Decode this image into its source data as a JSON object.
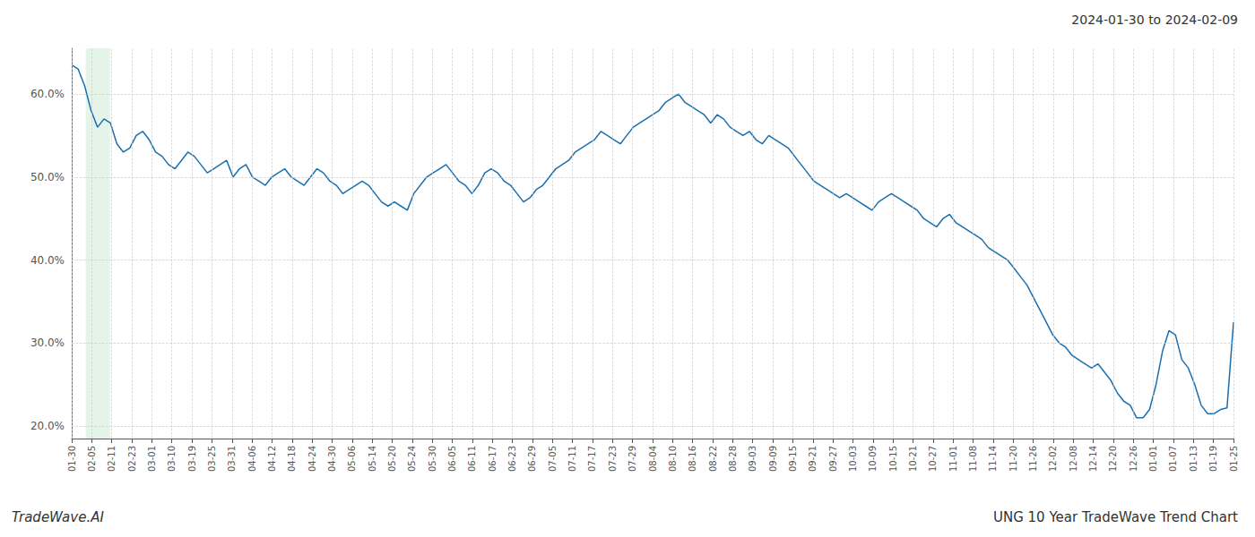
{
  "chart_data": {
    "type": "line",
    "title": "UNG 10 Year TradeWave Trend Chart",
    "subtitle": "2024-01-30 to 2024-02-09",
    "annotations": [
      "TradeWave.AI"
    ],
    "color": "#1a6faf",
    "grid": true,
    "highlight": {
      "x_start": 2.16,
      "x_end": 5.94,
      "color": "#d4edda"
    },
    "xlim": [
      0,
      180
    ],
    "xticks": [
      {
        "value": 0,
        "label": "01-30"
      },
      {
        "value": 3.103448275862,
        "label": "02-05"
      },
      {
        "value": 6.206896551724,
        "label": "02-11"
      },
      {
        "value": 9.310344827586,
        "label": "02-23"
      },
      {
        "value": 12.413793103448,
        "label": "03-01"
      },
      {
        "value": 15.51724137931,
        "label": "03-10"
      },
      {
        "value": 18.620689655172,
        "label": "03-19"
      },
      {
        "value": 21.724137931034,
        "label": "03-25"
      },
      {
        "value": 24.827586206897,
        "label": "03-31"
      },
      {
        "value": 27.931034482759,
        "label": "04-06"
      },
      {
        "value": 31.034482758621,
        "label": "04-12"
      },
      {
        "value": 34.137931034483,
        "label": "04-18"
      },
      {
        "value": 37.241379310345,
        "label": "04-24"
      },
      {
        "value": 40.344827586207,
        "label": "04-30"
      },
      {
        "value": 43.448275862069,
        "label": "05-06"
      },
      {
        "value": 46.551724137931,
        "label": "05-14"
      },
      {
        "value": 49.655172413793,
        "label": "05-20"
      },
      {
        "value": 52.758620689655,
        "label": "05-24"
      },
      {
        "value": 55.862068965517,
        "label": "05-30"
      },
      {
        "value": 58.965517241379,
        "label": "06-05"
      },
      {
        "value": 62.068965517241,
        "label": "06-11"
      },
      {
        "value": 65.172413793103,
        "label": "06-17"
      },
      {
        "value": 68.275862068966,
        "label": "06-23"
      },
      {
        "value": 71.379310344828,
        "label": "06-29"
      },
      {
        "value": 74.48275862069,
        "label": "07-05"
      },
      {
        "value": 77.586206896552,
        "label": "07-11"
      },
      {
        "value": 80.689655172414,
        "label": "07-17"
      },
      {
        "value": 83.793103448276,
        "label": "07-23"
      },
      {
        "value": 86.896551724138,
        "label": "07-29"
      },
      {
        "value": 90,
        "label": "08-04"
      },
      {
        "value": 93.103448275862,
        "label": "08-10"
      },
      {
        "value": 96.206896551724,
        "label": "08-16"
      },
      {
        "value": 99.310344827586,
        "label": "08-22"
      },
      {
        "value": 102.413793103448,
        "label": "08-28"
      },
      {
        "value": 105.51724137931,
        "label": "09-03"
      },
      {
        "value": 108.620689655172,
        "label": "09-09"
      },
      {
        "value": 111.724137931034,
        "label": "09-15"
      },
      {
        "value": 114.827586206897,
        "label": "09-21"
      },
      {
        "value": 117.931034482759,
        "label": "09-27"
      },
      {
        "value": 121.034482758621,
        "label": "10-03"
      },
      {
        "value": 124.137931034483,
        "label": "10-09"
      },
      {
        "value": 127.241379310345,
        "label": "10-15"
      },
      {
        "value": 130.344827586207,
        "label": "10-21"
      },
      {
        "value": 133.448275862069,
        "label": "10-27"
      },
      {
        "value": 136.551724137931,
        "label": "11-01"
      },
      {
        "value": 139.655172413793,
        "label": "11-08"
      },
      {
        "value": 142.758620689655,
        "label": "11-14"
      },
      {
        "value": 145.862068965517,
        "label": "11-20"
      },
      {
        "value": 148.965517241379,
        "label": "11-26"
      },
      {
        "value": 152.068965517241,
        "label": "12-02"
      },
      {
        "value": 155.172413793103,
        "label": "12-08"
      },
      {
        "value": 158.275862068966,
        "label": "12-14"
      },
      {
        "value": 161.379310344828,
        "label": "12-20"
      },
      {
        "value": 164.48275862069,
        "label": "12-26"
      },
      {
        "value": 167.586206896552,
        "label": "01-01"
      },
      {
        "value": 170.689655172414,
        "label": "01-07"
      },
      {
        "value": 173.793103448276,
        "label": "01-13"
      },
      {
        "value": 176.896551724138,
        "label": "01-19"
      },
      {
        "value": 180,
        "label": "01-25"
      }
    ],
    "ylim": [
      0.185,
      0.655
    ],
    "yticks": [
      {
        "value": 0.2,
        "label": "20.0%"
      },
      {
        "value": 0.3,
        "label": "30.0%"
      },
      {
        "value": 0.4,
        "label": "40.0%"
      },
      {
        "value": 0.5,
        "label": "50.0%"
      },
      {
        "value": 0.6,
        "label": "60.0%"
      }
    ],
    "x": [
      0,
      1,
      2,
      3,
      4,
      5,
      6,
      7,
      8,
      9,
      10,
      11,
      12,
      13,
      14,
      15,
      16,
      17,
      18,
      19,
      20,
      21,
      22,
      23,
      24,
      25,
      26,
      27,
      28,
      29,
      30,
      31,
      32,
      33,
      34,
      35,
      36,
      37,
      38,
      39,
      40,
      41,
      42,
      43,
      44,
      45,
      46,
      47,
      48,
      49,
      50,
      51,
      52,
      53,
      54,
      55,
      56,
      57,
      58,
      59,
      60,
      61,
      62,
      63,
      64,
      65,
      66,
      67,
      68,
      69,
      70,
      71,
      72,
      73,
      74,
      75,
      76,
      77,
      78,
      79,
      80,
      81,
      82,
      83,
      84,
      85,
      86,
      87,
      88,
      89,
      90,
      91,
      92,
      93,
      94,
      95,
      96,
      97,
      98,
      99,
      100,
      101,
      102,
      103,
      104,
      105,
      106,
      107,
      108,
      109,
      110,
      111,
      112,
      113,
      114,
      115,
      116,
      117,
      118,
      119,
      120,
      121,
      122,
      123,
      124,
      125,
      126,
      127,
      128,
      129,
      130,
      131,
      132,
      133,
      134,
      135,
      136,
      137,
      138,
      139,
      140,
      141,
      142,
      143,
      144,
      145,
      146,
      147,
      148,
      149,
      150,
      151,
      152,
      153,
      154,
      155,
      156,
      157,
      158,
      159,
      160,
      161,
      162,
      163,
      164,
      165,
      166,
      167,
      168,
      169,
      170,
      171,
      172,
      173,
      174,
      175,
      176,
      177,
      178,
      179,
      180
    ],
    "values": [
      0.635,
      0.63,
      0.61,
      0.58,
      0.56,
      0.57,
      0.565,
      0.54,
      0.53,
      0.535,
      0.55,
      0.555,
      0.545,
      0.53,
      0.525,
      0.515,
      0.51,
      0.52,
      0.53,
      0.525,
      0.515,
      0.505,
      0.51,
      0.515,
      0.52,
      0.5,
      0.51,
      0.515,
      0.5,
      0.495,
      0.49,
      0.5,
      0.505,
      0.51,
      0.5,
      0.495,
      0.49,
      0.5,
      0.51,
      0.505,
      0.495,
      0.49,
      0.48,
      0.485,
      0.49,
      0.495,
      0.49,
      0.48,
      0.47,
      0.465,
      0.47,
      0.465,
      0.46,
      0.48,
      0.49,
      0.5,
      0.505,
      0.51,
      0.515,
      0.505,
      0.495,
      0.49,
      0.48,
      0.49,
      0.505,
      0.51,
      0.505,
      0.495,
      0.49,
      0.48,
      0.47,
      0.475,
      0.485,
      0.49,
      0.5,
      0.51,
      0.515,
      0.52,
      0.53,
      0.535,
      0.54,
      0.545,
      0.555,
      0.55,
      0.545,
      0.54,
      0.55,
      0.56,
      0.565,
      0.57,
      0.575,
      0.58,
      0.59,
      0.595,
      0.6,
      0.59,
      0.585,
      0.58,
      0.575,
      0.565,
      0.575,
      0.57,
      0.56,
      0.555,
      0.55,
      0.555,
      0.545,
      0.54,
      0.55,
      0.545,
      0.54,
      0.535,
      0.525,
      0.515,
      0.505,
      0.495,
      0.49,
      0.485,
      0.48,
      0.475,
      0.48,
      0.475,
      0.47,
      0.465,
      0.46,
      0.47,
      0.475,
      0.48,
      0.475,
      0.47,
      0.465,
      0.46,
      0.45,
      0.445,
      0.44,
      0.45,
      0.455,
      0.445,
      0.44,
      0.435,
      0.43,
      0.425,
      0.415,
      0.41,
      0.405,
      0.4,
      0.39,
      0.38,
      0.37,
      0.355,
      0.34,
      0.325,
      0.31,
      0.3,
      0.295,
      0.285,
      0.28,
      0.275,
      0.27,
      0.275,
      0.265,
      0.255,
      0.24,
      0.23,
      0.225,
      0.21,
      0.21,
      0.22,
      0.25,
      0.29,
      0.315,
      0.31,
      0.28,
      0.27,
      0.25,
      0.225,
      0.215,
      0.215,
      0.22,
      0.222,
      0.325
    ]
  }
}
